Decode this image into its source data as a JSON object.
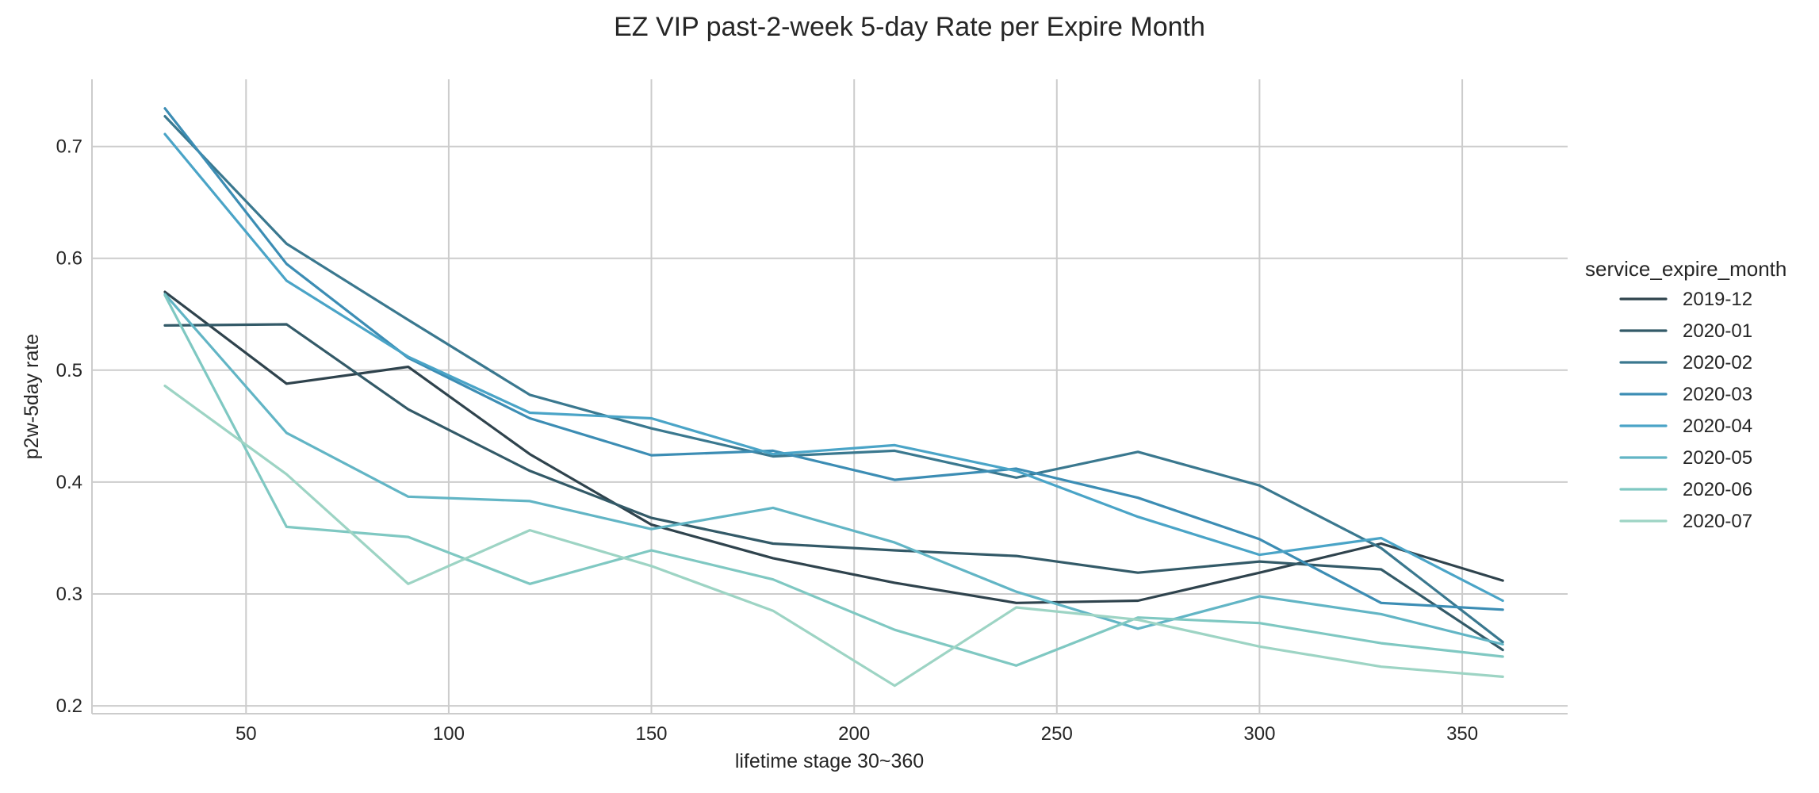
{
  "chart_data": {
    "type": "line",
    "title": "EZ VIP past-2-week 5-day Rate per Expire Month",
    "xlabel": "lifetime stage 30~360",
    "ylabel": "p2w-5day rate",
    "xlim": [
      12,
      376
    ],
    "ylim": [
      0.193,
      0.76
    ],
    "xticks": [
      50,
      100,
      150,
      200,
      250,
      300,
      350
    ],
    "yticks": [
      0.2,
      0.3,
      0.4,
      0.5,
      0.6,
      0.7
    ],
    "grid": true,
    "legend_title": "service_expire_month",
    "legend_position": "right",
    "x": [
      30,
      60,
      90,
      120,
      150,
      180,
      210,
      240,
      270,
      300,
      330,
      360
    ],
    "series": [
      {
        "name": "2019-12",
        "color": "#2f434d",
        "values": [
          0.57,
          0.488,
          0.503,
          0.425,
          0.362,
          0.332,
          0.31,
          0.292,
          0.294,
          0.319,
          0.345,
          0.312
        ]
      },
      {
        "name": "2020-01",
        "color": "#335a68",
        "values": [
          0.54,
          0.541,
          0.465,
          0.41,
          0.368,
          0.345,
          0.339,
          0.334,
          0.319,
          0.329,
          0.322,
          0.25
        ]
      },
      {
        "name": "2020-02",
        "color": "#3a788f",
        "values": [
          0.727,
          0.613,
          0.545,
          0.478,
          0.448,
          0.423,
          0.428,
          0.404,
          0.427,
          0.397,
          0.341,
          0.257
        ]
      },
      {
        "name": "2020-03",
        "color": "#3c8db4",
        "values": [
          0.734,
          0.595,
          0.511,
          0.457,
          0.424,
          0.428,
          0.402,
          0.412,
          0.386,
          0.349,
          0.292,
          0.286
        ]
      },
      {
        "name": "2020-04",
        "color": "#4aa4c7",
        "values": [
          0.711,
          0.58,
          0.512,
          0.462,
          0.457,
          0.425,
          0.433,
          0.41,
          0.369,
          0.335,
          0.35,
          0.294
        ]
      },
      {
        "name": "2020-05",
        "color": "#62b5c5",
        "values": [
          0.568,
          0.444,
          0.387,
          0.383,
          0.358,
          0.377,
          0.346,
          0.302,
          0.269,
          0.298,
          0.282,
          0.255
        ]
      },
      {
        "name": "2020-06",
        "color": "#7fc8c2",
        "values": [
          0.567,
          0.36,
          0.351,
          0.309,
          0.339,
          0.313,
          0.268,
          0.236,
          0.279,
          0.274,
          0.256,
          0.244
        ]
      },
      {
        "name": "2020-07",
        "color": "#9dd4c4",
        "values": [
          0.486,
          0.407,
          0.309,
          0.357,
          0.325,
          0.285,
          0.218,
          0.288,
          0.277,
          0.253,
          0.235,
          0.226
        ]
      }
    ]
  }
}
